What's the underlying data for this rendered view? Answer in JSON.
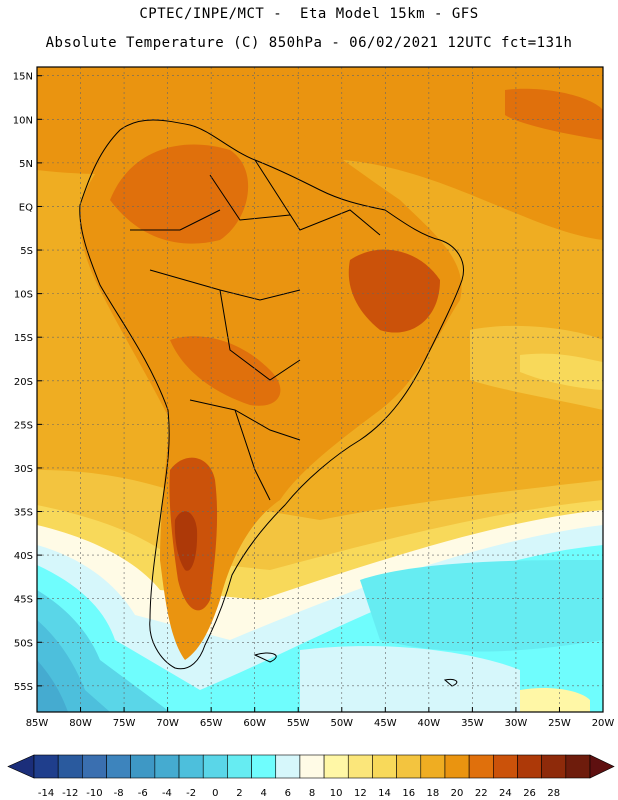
{
  "header": {
    "line1": "CPTEC/INPE/MCT -  Eta Model 15km - GFS",
    "line2": "Absolute Temperature (C) 850hPa - 06/02/2021 12UTC fct=131h"
  },
  "map": {
    "lon_range": [
      -85,
      -20
    ],
    "lat_range": [
      -58,
      16
    ],
    "lat_labels": [
      "15N",
      "10N",
      "5N",
      "EQ",
      "5S",
      "10S",
      "15S",
      "20S",
      "25S",
      "30S",
      "35S",
      "40S",
      "45S",
      "50S",
      "55S"
    ],
    "lat_values": [
      15,
      10,
      5,
      0,
      -5,
      -10,
      -15,
      -20,
      -25,
      -30,
      -35,
      -40,
      -45,
      -50,
      -55
    ],
    "lon_labels": [
      "85W",
      "80W",
      "75W",
      "70W",
      "65W",
      "60W",
      "55W",
      "50W",
      "45W",
      "40W",
      "35W",
      "30W",
      "25W",
      "20W"
    ],
    "lon_values": [
      -85,
      -80,
      -75,
      -70,
      -65,
      -60,
      -55,
      -50,
      -45,
      -40,
      -35,
      -30,
      -25,
      -20
    ]
  },
  "colorbar": {
    "labels": [
      "-14",
      "-12",
      "-10",
      "-8",
      "-6",
      "-4",
      "-2",
      "0",
      "2",
      "4",
      "6",
      "8",
      "10",
      "12",
      "14",
      "16",
      "18",
      "20",
      "22",
      "24",
      "26",
      "28"
    ],
    "colors": [
      "#1f3e8c",
      "#2a5a9e",
      "#3a6fb0",
      "#3d84bd",
      "#3e98c5",
      "#45abd0",
      "#4dbfdc",
      "#5ad6e8",
      "#66ecf2",
      "#6ffdfd",
      "#d6f7fb",
      "#fffbe6",
      "#fff7a6",
      "#fbe67a",
      "#f8d95a",
      "#f3c43f",
      "#efad22",
      "#ea9410",
      "#e0700c",
      "#cb520a",
      "#ad3908",
      "#8e2a0a",
      "#6e1c0c"
    ]
  },
  "legend_values": [
    -14,
    -12,
    -10,
    -8,
    -6,
    -4,
    -2,
    0,
    2,
    4,
    6,
    8,
    10,
    12,
    14,
    16,
    18,
    20,
    22,
    24,
    26,
    28
  ]
}
